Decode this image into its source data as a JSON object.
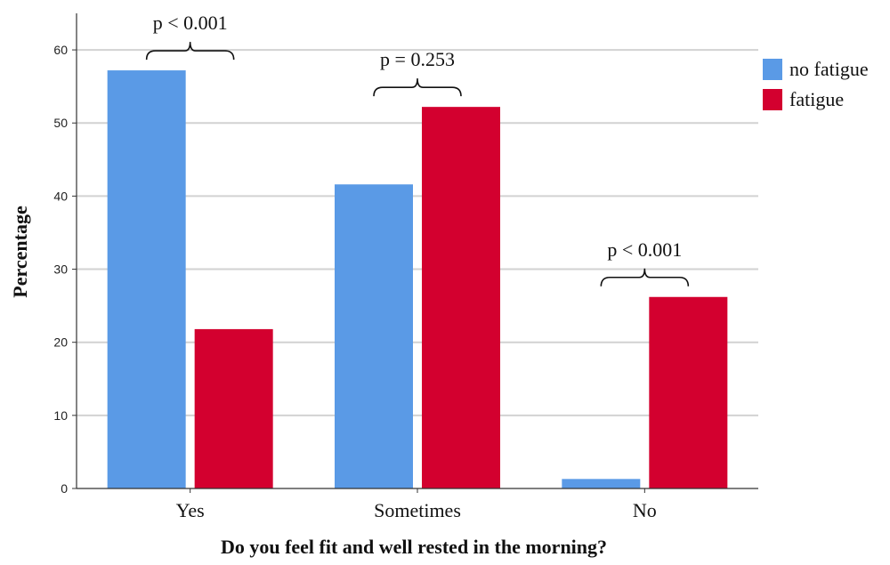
{
  "chart_data": {
    "type": "bar",
    "title": "",
    "xlabel": "Do you feel fit and well rested in the morning?",
    "ylabel": "Percentage",
    "categories": [
      "Yes",
      "Sometimes",
      "No"
    ],
    "series": [
      {
        "name": "no fatigue",
        "color": "#5a9ae6",
        "values": [
          57.2,
          41.6,
          1.3
        ]
      },
      {
        "name": "fatigue",
        "color": "#d3002f",
        "values": [
          21.8,
          52.2,
          26.2
        ]
      }
    ],
    "ylim": [
      0,
      65
    ],
    "yticks": [
      0,
      10,
      20,
      30,
      40,
      50,
      60
    ],
    "grid": true,
    "legend_position": "top-right",
    "annotations": [
      {
        "category": "Yes",
        "text": "p < 0.001"
      },
      {
        "category": "Sometimes",
        "text": "p = 0.253"
      },
      {
        "category": "No",
        "text": "p < 0.001"
      }
    ]
  }
}
